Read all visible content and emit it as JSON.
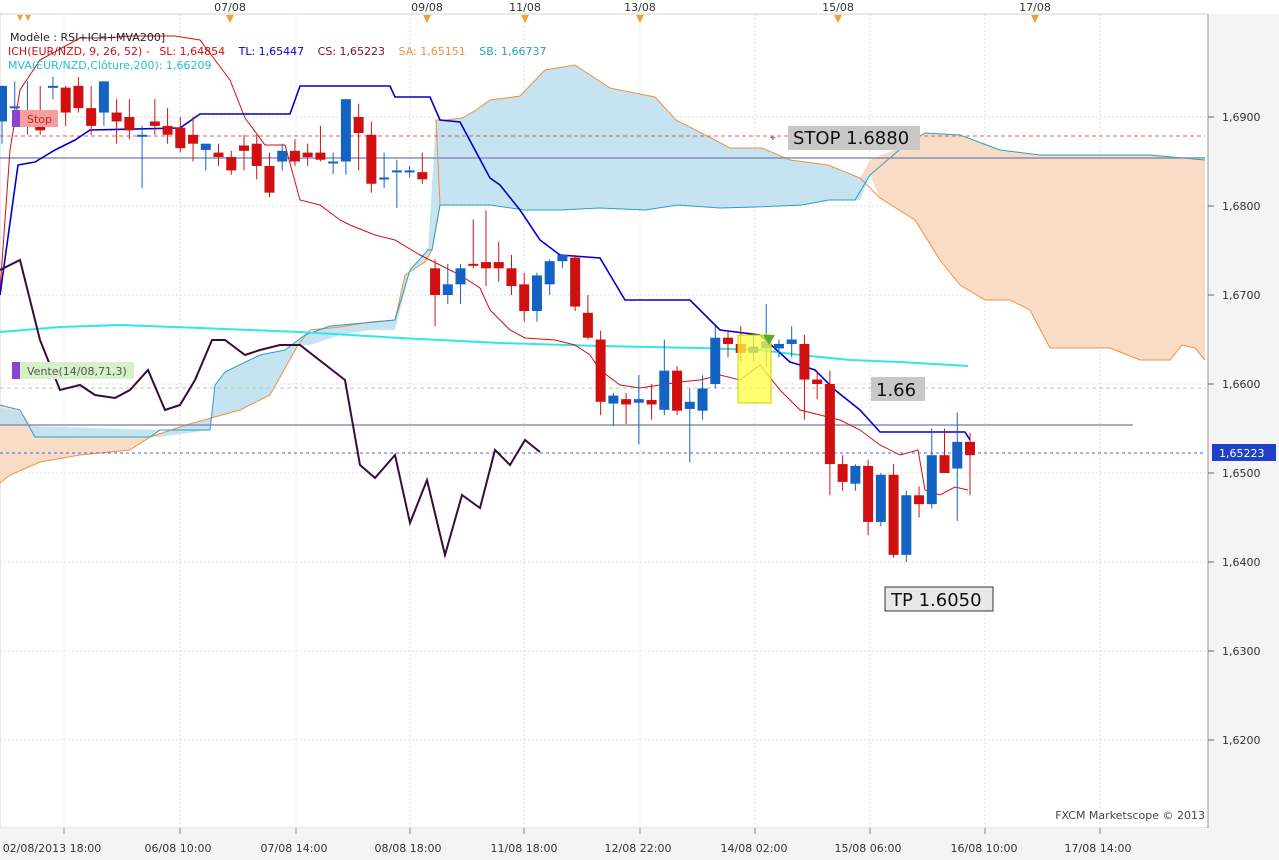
{
  "header": {
    "model": "Modèle : RSI+ICH+MVA200]",
    "ich": {
      "name": "ICH(EUR/NZD, 9, 26, 52) -",
      "sl": "SL: 1,64854",
      "tl": "TL: 1,65447",
      "cs": "CS: 1,65223",
      "sa": "SA: 1,65151",
      "sb": "SB: 1,66737"
    },
    "mva": "MVA(EUR/NZD,Clôture,200): 1,66209"
  },
  "top_dates": [
    "07/08",
    "09/08",
    "11/08",
    "13/08",
    "15/08",
    "17/08"
  ],
  "bottom_dates": [
    "02/08/2013 18:00",
    "06/08 10:00",
    "07/08 14:00",
    "08/08 18:00",
    "11/08 18:00",
    "12/08 22:00",
    "14/08 02:00",
    "15/08 06:00",
    "16/08 10:00",
    "17/08 14:00"
  ],
  "price_axis": [
    "1,6900",
    "1,6800",
    "1,6700",
    "1,6600",
    "1,6500",
    "1,6400",
    "1,6300",
    "1,6200"
  ],
  "current_price": "1,65223",
  "annotations": {
    "stop_tag": "Stop",
    "vente_tag": "Vente(14/08,71,3)",
    "stop_label": "STOP 1.6880",
    "level_label": "1.66",
    "tp_label": "TP 1.6050"
  },
  "watermark": "FXCM Marketscope © 2013",
  "colors": {
    "bull": "#1463c3",
    "bear": "#d01010",
    "tenkan": "#d01010",
    "kijun": "#0000cc",
    "mva": "#33e6e6",
    "rsi": "#3a0a3a",
    "cloud_bull": "#bfe0f0",
    "cloud_bear": "#f8d8c0",
    "span_a": "#f09040",
    "span_b": "#2aa0c0"
  },
  "chart_data": {
    "type": "candlestick",
    "ylim": [
      1.6,
      1.695
    ],
    "price_ticks": [
      1.69,
      1.68,
      1.67,
      1.66,
      1.65,
      1.64,
      1.63,
      1.62
    ],
    "candles": [
      {
        "o": 1.6895,
        "h": 1.6935,
        "l": 1.687,
        "c": 1.6935
      },
      {
        "o": 1.691,
        "h": 1.694,
        "l": 1.689,
        "c": 1.6912
      },
      {
        "o": 1.6905,
        "h": 1.694,
        "l": 1.688,
        "c": 1.6905
      },
      {
        "o": 1.6895,
        "h": 1.6935,
        "l": 1.688,
        "c": 1.6885
      },
      {
        "o": 1.6935,
        "h": 1.6945,
        "l": 1.692,
        "c": 1.6935
      },
      {
        "o": 1.6933,
        "h": 1.6935,
        "l": 1.689,
        "c": 1.6905
      },
      {
        "o": 1.6935,
        "h": 1.6945,
        "l": 1.6905,
        "c": 1.691
      },
      {
        "o": 1.691,
        "h": 1.6935,
        "l": 1.688,
        "c": 1.689
      },
      {
        "o": 1.6905,
        "h": 1.694,
        "l": 1.689,
        "c": 1.694
      },
      {
        "o": 1.6905,
        "h": 1.692,
        "l": 1.687,
        "c": 1.6895
      },
      {
        "o": 1.69,
        "h": 1.692,
        "l": 1.6875,
        "c": 1.6885
      },
      {
        "o": 1.688,
        "h": 1.689,
        "l": 1.682,
        "c": 1.688
      },
      {
        "o": 1.6895,
        "h": 1.692,
        "l": 1.688,
        "c": 1.689
      },
      {
        "o": 1.689,
        "h": 1.691,
        "l": 1.687,
        "c": 1.688
      },
      {
        "o": 1.6888,
        "h": 1.69,
        "l": 1.686,
        "c": 1.6865
      },
      {
        "o": 1.688,
        "h": 1.69,
        "l": 1.685,
        "c": 1.687
      },
      {
        "o": 1.6863,
        "h": 1.687,
        "l": 1.684,
        "c": 1.687
      },
      {
        "o": 1.686,
        "h": 1.687,
        "l": 1.6845,
        "c": 1.6855
      },
      {
        "o": 1.6855,
        "h": 1.6862,
        "l": 1.6835,
        "c": 1.684
      },
      {
        "o": 1.6868,
        "h": 1.688,
        "l": 1.684,
        "c": 1.6862
      },
      {
        "o": 1.687,
        "h": 1.688,
        "l": 1.683,
        "c": 1.6845
      },
      {
        "o": 1.6845,
        "h": 1.686,
        "l": 1.681,
        "c": 1.6815
      },
      {
        "o": 1.685,
        "h": 1.687,
        "l": 1.684,
        "c": 1.6862
      },
      {
        "o": 1.6862,
        "h": 1.6875,
        "l": 1.6845,
        "c": 1.685
      },
      {
        "o": 1.686,
        "h": 1.687,
        "l": 1.6845,
        "c": 1.6855
      },
      {
        "o": 1.686,
        "h": 1.689,
        "l": 1.685,
        "c": 1.6852
      },
      {
        "o": 1.685,
        "h": 1.686,
        "l": 1.6836,
        "c": 1.685
      },
      {
        "o": 1.685,
        "h": 1.692,
        "l": 1.6835,
        "c": 1.692
      },
      {
        "o": 1.69,
        "h": 1.6915,
        "l": 1.684,
        "c": 1.6882
      },
      {
        "o": 1.688,
        "h": 1.6895,
        "l": 1.6815,
        "c": 1.6825
      },
      {
        "o": 1.6832,
        "h": 1.686,
        "l": 1.682,
        "c": 1.6832
      },
      {
        "o": 1.684,
        "h": 1.6852,
        "l": 1.6798,
        "c": 1.684
      },
      {
        "o": 1.6838,
        "h": 1.6845,
        "l": 1.6832,
        "c": 1.684
      },
      {
        "o": 1.6838,
        "h": 1.686,
        "l": 1.6825,
        "c": 1.683
      },
      {
        "o": 1.673,
        "h": 1.674,
        "l": 1.6665,
        "c": 1.67
      },
      {
        "o": 1.67,
        "h": 1.6735,
        "l": 1.669,
        "c": 1.6712
      },
      {
        "o": 1.6712,
        "h": 1.6735,
        "l": 1.669,
        "c": 1.673
      },
      {
        "o": 1.6735,
        "h": 1.6785,
        "l": 1.673,
        "c": 1.6733
      },
      {
        "o": 1.6737,
        "h": 1.6795,
        "l": 1.671,
        "c": 1.673
      },
      {
        "o": 1.6737,
        "h": 1.676,
        "l": 1.6715,
        "c": 1.673
      },
      {
        "o": 1.673,
        "h": 1.6745,
        "l": 1.67,
        "c": 1.671
      },
      {
        "o": 1.6712,
        "h": 1.6725,
        "l": 1.667,
        "c": 1.6682
      },
      {
        "o": 1.6682,
        "h": 1.6725,
        "l": 1.667,
        "c": 1.6722
      },
      {
        "o": 1.6712,
        "h": 1.674,
        "l": 1.67,
        "c": 1.6738
      },
      {
        "o": 1.6738,
        "h": 1.6745,
        "l": 1.673,
        "c": 1.6745
      },
      {
        "o": 1.6742,
        "h": 1.6745,
        "l": 1.6682,
        "c": 1.6687
      },
      {
        "o": 1.668,
        "h": 1.67,
        "l": 1.665,
        "c": 1.6652
      },
      {
        "o": 1.665,
        "h": 1.666,
        "l": 1.6565,
        "c": 1.658
      },
      {
        "o": 1.6578,
        "h": 1.659,
        "l": 1.6553,
        "c": 1.6587
      },
      {
        "o": 1.6583,
        "h": 1.659,
        "l": 1.6555,
        "c": 1.6577
      },
      {
        "o": 1.6579,
        "h": 1.661,
        "l": 1.6532,
        "c": 1.6583
      },
      {
        "o": 1.6582,
        "h": 1.66,
        "l": 1.656,
        "c": 1.6577
      },
      {
        "o": 1.6571,
        "h": 1.665,
        "l": 1.6565,
        "c": 1.6615
      },
      {
        "o": 1.6615,
        "h": 1.662,
        "l": 1.6565,
        "c": 1.657
      },
      {
        "o": 1.6572,
        "h": 1.6595,
        "l": 1.6512,
        "c": 1.658
      },
      {
        "o": 1.657,
        "h": 1.661,
        "l": 1.656,
        "c": 1.6595
      },
      {
        "o": 1.66,
        "h": 1.6665,
        "l": 1.6595,
        "c": 1.6652
      },
      {
        "o": 1.6652,
        "h": 1.666,
        "l": 1.663,
        "c": 1.6645
      },
      {
        "o": 1.6645,
        "h": 1.6665,
        "l": 1.6625,
        "c": 1.6635
      },
      {
        "o": 1.6635,
        "h": 1.6655,
        "l": 1.6625,
        "c": 1.6642
      },
      {
        "o": 1.664,
        "h": 1.669,
        "l": 1.662,
        "c": 1.6648
      },
      {
        "o": 1.664,
        "h": 1.665,
        "l": 1.663,
        "c": 1.6645
      },
      {
        "o": 1.6645,
        "h": 1.6665,
        "l": 1.663,
        "c": 1.665
      },
      {
        "o": 1.6645,
        "h": 1.6655,
        "l": 1.656,
        "c": 1.6605
      },
      {
        "o": 1.6605,
        "h": 1.6615,
        "l": 1.6583,
        "c": 1.66
      },
      {
        "o": 1.66,
        "h": 1.6615,
        "l": 1.6475,
        "c": 1.651
      },
      {
        "o": 1.651,
        "h": 1.652,
        "l": 1.648,
        "c": 1.649
      },
      {
        "o": 1.6488,
        "h": 1.651,
        "l": 1.648,
        "c": 1.6508
      },
      {
        "o": 1.6508,
        "h": 1.6515,
        "l": 1.643,
        "c": 1.6445
      },
      {
        "o": 1.6445,
        "h": 1.65,
        "l": 1.644,
        "c": 1.6498
      },
      {
        "o": 1.6498,
        "h": 1.651,
        "l": 1.6405,
        "c": 1.6408
      },
      {
        "o": 1.6408,
        "h": 1.648,
        "l": 1.64,
        "c": 1.6475
      },
      {
        "o": 1.6475,
        "h": 1.6485,
        "l": 1.645,
        "c": 1.6465
      },
      {
        "o": 1.6465,
        "h": 1.655,
        "l": 1.646,
        "c": 1.652
      },
      {
        "o": 1.652,
        "h": 1.655,
        "l": 1.65,
        "c": 1.65
      },
      {
        "o": 1.6505,
        "h": 1.6568,
        "l": 1.6446,
        "c": 1.6535
      },
      {
        "o": 1.6535,
        "h": 1.6545,
        "l": 1.6475,
        "c": 1.652
      }
    ]
  }
}
